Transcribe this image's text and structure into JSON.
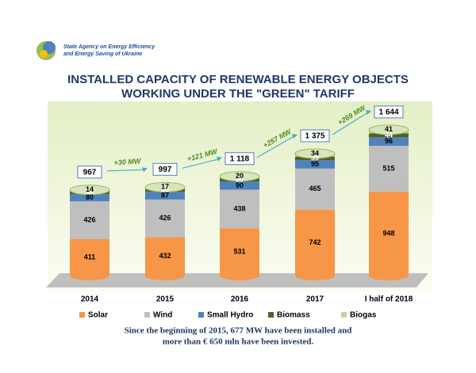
{
  "header": {
    "agency_line1": "State Agency on Energy Efficiency",
    "agency_line2": "and Energy Saving of Ukraine"
  },
  "chart_data": {
    "type": "stacked-cylinder",
    "title_line1": "INSTALLED CAPACITY OF RENEWABLE ENERGY OBJECTS",
    "title_line2": "WORKING UNDER THE \"GREEN\" TARIFF",
    "categories": [
      "2014",
      "2015",
      "2016",
      "2017",
      "I half of 2018"
    ],
    "series": [
      {
        "name": "Solar",
        "color": "#f79646",
        "values": [
          411,
          432,
          531,
          742,
          948
        ]
      },
      {
        "name": "Wind",
        "color": "#bfbfbf",
        "values": [
          426,
          426,
          438,
          465,
          515
        ]
      },
      {
        "name": "Small Hydro",
        "color": "#4f81bd",
        "values": [
          80,
          87,
          90,
          95,
          96
        ]
      },
      {
        "name": "Biomass",
        "color": "#4f6228",
        "values": [
          35,
          35,
          39,
          39,
          44
        ]
      },
      {
        "name": "Biogas",
        "color": "#c3d69b",
        "values": [
          14,
          17,
          20,
          34,
          41
        ]
      }
    ],
    "totals": {
      "values": [
        967,
        997,
        1118,
        1375,
        1644
      ],
      "value_labels": [
        "967",
        "997",
        "1 118",
        "1 375",
        "1 644"
      ]
    },
    "increments": [
      "+30 MW",
      "+121 MW",
      "+257 MW",
      "+269 MW"
    ],
    "note_line1": "Since the beginning of 2015, 677 MW have been installed and",
    "note_line2": "more than € 650 mln have been invested."
  }
}
